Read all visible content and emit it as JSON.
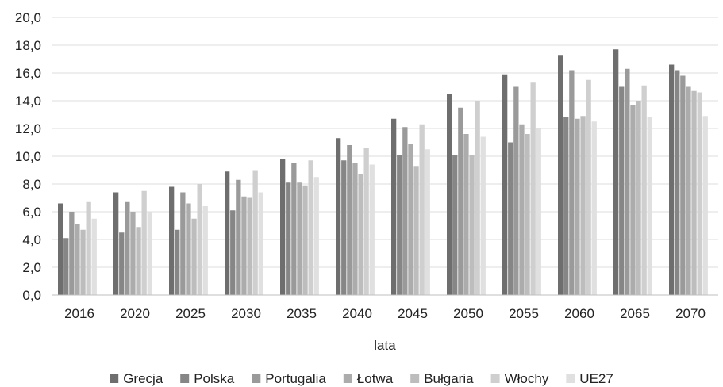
{
  "chart_data": {
    "type": "bar",
    "xlabel": "lata",
    "ylabel": "",
    "ylim": [
      0,
      20
    ],
    "y_tick_step": 2,
    "y_tick_labels": [
      "0,0",
      "2,0",
      "4,0",
      "6,0",
      "8,0",
      "10,0",
      "12,0",
      "14,0",
      "16,0",
      "18,0",
      "20,0"
    ],
    "grid": true,
    "legend_position": "bottom",
    "categories": [
      "2016",
      "2020",
      "2025",
      "2030",
      "2035",
      "2040",
      "2045",
      "2050",
      "2055",
      "2060",
      "2065",
      "2070"
    ],
    "series": [
      {
        "name": "Grecja",
        "color": "#6e6e6e",
        "values": [
          6.6,
          7.4,
          7.8,
          8.9,
          9.8,
          11.3,
          12.7,
          14.5,
          15.9,
          17.3,
          17.7,
          16.6
        ]
      },
      {
        "name": "Polska",
        "color": "#868686",
        "values": [
          4.1,
          4.5,
          4.7,
          6.1,
          8.1,
          9.7,
          10.1,
          10.1,
          11.0,
          12.8,
          15.0,
          16.2
        ]
      },
      {
        "name": "Portugalia",
        "color": "#9a9a9a",
        "values": [
          6.0,
          6.7,
          7.4,
          8.3,
          9.5,
          10.8,
          12.1,
          13.5,
          15.0,
          16.2,
          16.3,
          15.8
        ]
      },
      {
        "name": "Łotwa",
        "color": "#acacac",
        "values": [
          5.1,
          6.0,
          6.6,
          7.1,
          8.1,
          9.5,
          10.9,
          11.6,
          12.3,
          12.7,
          13.7,
          15.0
        ]
      },
      {
        "name": "Bułgaria",
        "color": "#bdbdbd",
        "values": [
          4.7,
          4.9,
          5.5,
          7.0,
          7.9,
          8.7,
          9.3,
          10.1,
          11.6,
          12.9,
          14.0,
          14.7
        ]
      },
      {
        "name": "Włochy",
        "color": "#cfcfcf",
        "values": [
          6.7,
          7.5,
          8.0,
          9.0,
          9.7,
          10.6,
          12.3,
          14.0,
          15.3,
          15.5,
          15.1,
          14.6
        ]
      },
      {
        "name": "UE27",
        "color": "#e0e0e0",
        "values": [
          5.5,
          6.0,
          6.4,
          7.4,
          8.5,
          9.4,
          10.5,
          11.4,
          12.0,
          12.5,
          12.8,
          12.9
        ]
      }
    ]
  }
}
